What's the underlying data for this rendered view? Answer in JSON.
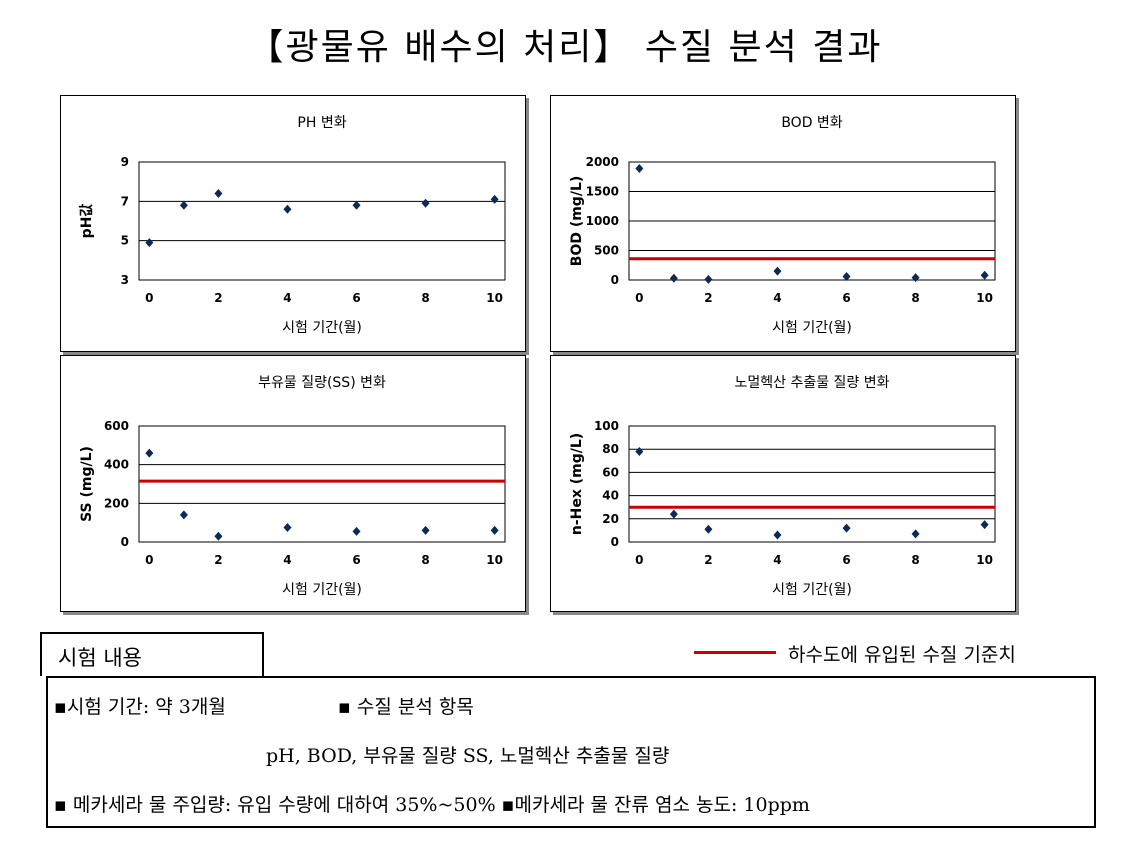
{
  "title": "【광물유 배수의 처리】 수질 분석 결과",
  "chart_data": [
    {
      "type": "scatter",
      "title": "PH 변화",
      "xlabel": "시험 기간(월)",
      "ylabel": "pH값",
      "xlim": [
        -0.3,
        10.3
      ],
      "ylim": [
        3,
        9
      ],
      "xticks": [
        "0",
        "2",
        "4",
        "6",
        "8",
        "10"
      ],
      "yticks": [
        "3",
        "5",
        "7",
        "9"
      ],
      "grid": true,
      "hlines": [],
      "series": [
        {
          "x": [
            0,
            1,
            2,
            4,
            6,
            8,
            10
          ],
          "y": [
            4.9,
            6.8,
            7.4,
            6.6,
            6.8,
            6.9,
            7.1
          ]
        }
      ]
    },
    {
      "type": "scatter",
      "title": "BOD 변화",
      "xlabel": "시험 기간(월)",
      "ylabel": "BOD (mg/L)",
      "xlim": [
        -0.3,
        10.3
      ],
      "ylim": [
        0,
        2000
      ],
      "xticks": [
        "0",
        "2",
        "4",
        "6",
        "8",
        "10"
      ],
      "yticks": [
        "0",
        "500",
        "1000",
        "1500",
        "2000"
      ],
      "grid": true,
      "hlines": [
        360
      ],
      "series": [
        {
          "x": [
            0,
            1,
            2,
            4,
            6,
            8,
            10
          ],
          "y": [
            1890,
            30,
            10,
            150,
            60,
            40,
            80
          ]
        }
      ]
    },
    {
      "type": "scatter",
      "title": "부유물 질량(SS) 변화",
      "xlabel": "시험 기간(월)",
      "ylabel": "SS (mg/L)",
      "xlim": [
        -0.3,
        10.3
      ],
      "ylim": [
        0,
        600
      ],
      "xticks": [
        "0",
        "2",
        "4",
        "6",
        "8",
        "10"
      ],
      "yticks": [
        "0",
        "200",
        "400",
        "600"
      ],
      "grid": true,
      "hlines": [
        315
      ],
      "series": [
        {
          "x": [
            0,
            1,
            2,
            4,
            6,
            8,
            10
          ],
          "y": [
            460,
            140,
            30,
            75,
            55,
            60,
            60
          ]
        }
      ]
    },
    {
      "type": "scatter",
      "title": "노멀헥산 추출물 질량 변화",
      "xlabel": "시험 기간(월)",
      "ylabel": "n-Hex (mg/L)",
      "xlim": [
        -0.3,
        10.3
      ],
      "ylim": [
        0,
        100
      ],
      "xticks": [
        "0",
        "2",
        "4",
        "6",
        "8",
        "10"
      ],
      "yticks": [
        "0",
        "20",
        "40",
        "60",
        "80",
        "100"
      ],
      "grid": true,
      "hlines": [
        30
      ],
      "series": [
        {
          "x": [
            0,
            1,
            2,
            4,
            6,
            8,
            10
          ],
          "y": [
            78,
            24,
            11,
            6,
            12,
            7,
            15
          ]
        }
      ]
    }
  ],
  "legend": {
    "label": "하수도에 유입된 수질 기준치",
    "color": "#cc0000"
  },
  "colors": {
    "marker": "#0b2a55",
    "ref_line": "#cc0000"
  },
  "info": {
    "tab": "시험 내용",
    "line1_a": "▪시험 기간: 약 3개월",
    "line1_b": "▪ 수질 분석 항목",
    "line2": "pH, BOD, 부유물 질량 SS, 노멀헥산 추출물 질량",
    "line3": "▪ 메카세라 물 주입량: 유입 수량에 대하여 35%~50% ▪메카세라 물 잔류 염소 농도: 10ppm"
  }
}
